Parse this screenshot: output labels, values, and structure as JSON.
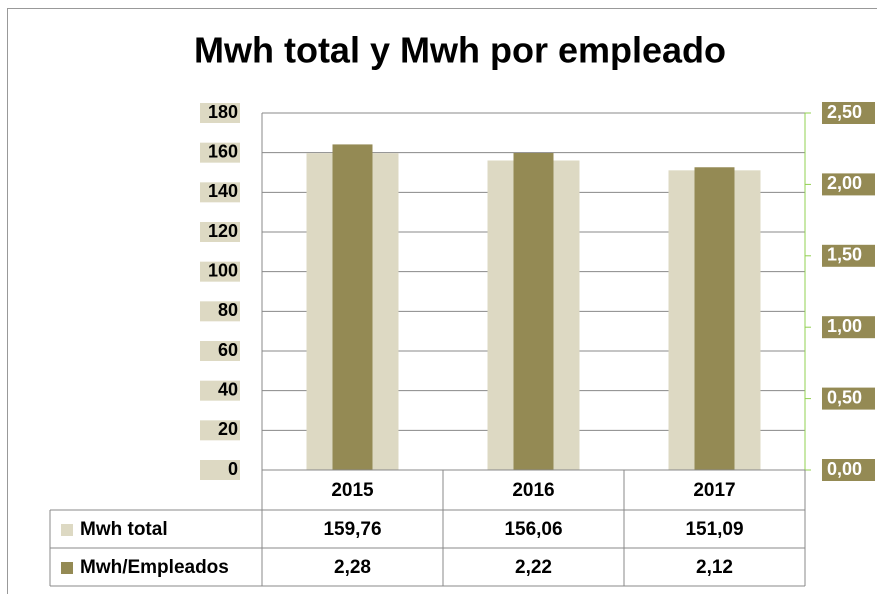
{
  "chart_data": {
    "type": "bar",
    "title": "Mwh total y Mwh por empleado",
    "categories": [
      "2015",
      "2016",
      "2017"
    ],
    "series": [
      {
        "name": "Mwh total",
        "color": "#ddd9c3",
        "values": [
          159.76,
          156.06,
          151.09
        ],
        "value_labels": [
          "159,76",
          "156,06",
          "151,09"
        ]
      },
      {
        "name": "Mwh/Empleados",
        "color": "#948a54",
        "axis": "y2",
        "values": [
          2.28,
          2.22,
          2.12
        ],
        "value_labels": [
          "2,28",
          "2,22",
          "2,12"
        ]
      }
    ],
    "ylim": [
      0,
      180
    ],
    "yticks": [
      0,
      20,
      40,
      60,
      80,
      100,
      120,
      140,
      160,
      180
    ],
    "y2lim": [
      0,
      2.5
    ],
    "y2ticks": [
      {
        "value": 0,
        "label": "0,00"
      },
      {
        "value": 0.5,
        "label": "0,50"
      },
      {
        "value": 1,
        "label": "1,00"
      },
      {
        "value": 1.5,
        "label": "1,50"
      },
      {
        "value": 2,
        "label": "2,00"
      },
      {
        "value": 2.5,
        "label": "2,50"
      }
    ],
    "grid": true
  }
}
